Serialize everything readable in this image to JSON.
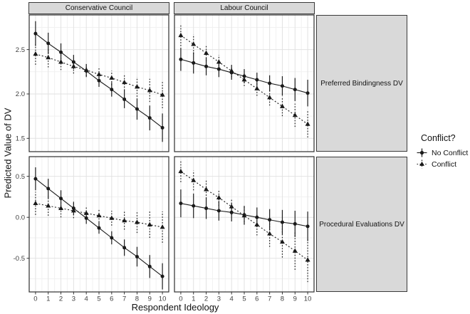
{
  "figure": {
    "col_labels": [
      "Conservative Council",
      "Labour Council"
    ],
    "row_labels": [
      "Preferred Bindingness DV",
      "Procedural Evaluations DV"
    ],
    "y_axis_title": "Predicted Value of DV",
    "x_axis_title": "Respondent Ideology",
    "legend": {
      "title": "Conflict?",
      "items": [
        {
          "label": "No Conflict",
          "marker": "circle",
          "linestyle": "solid"
        },
        {
          "label": "Conflict",
          "marker": "triangle",
          "linestyle": "dotted"
        }
      ]
    },
    "colors": {
      "data_ink": "#1a1a1a",
      "strip_fill": "#d9d9d9",
      "panel_border": "#2e2e2e",
      "grid_major": "#e2e2e2",
      "grid_minor": "#f1f1f1",
      "tick_label": "#404040"
    }
  },
  "chart_data": {
    "type": "line",
    "title": "",
    "xlabel": "Respondent Ideology",
    "ylabel": "Predicted Value of DV",
    "x": [
      0,
      1,
      2,
      3,
      4,
      5,
      6,
      7,
      8,
      9,
      10
    ],
    "xticks": [
      0,
      1,
      2,
      3,
      4,
      5,
      6,
      7,
      8,
      9,
      10
    ],
    "xlim": [
      -0.5,
      10.5
    ],
    "grid": true,
    "legend_position": "right",
    "facet_cols": [
      "Conservative Council",
      "Labour Council"
    ],
    "facet_rows": [
      "Preferred Bindingness DV",
      "Procedural Evaluations DV"
    ],
    "facets": [
      {
        "col": "Conservative Council",
        "row": "Preferred Bindingness DV",
        "ylim": [
          1.35,
          2.89
        ],
        "yticks": [
          1.5,
          2.0,
          2.5
        ],
        "series": [
          {
            "name": "No Conflict",
            "marker": "circle",
            "linestyle": "solid",
            "values": [
              2.68,
              2.57,
              2.47,
              2.36,
              2.26,
              2.15,
              2.05,
              1.94,
              1.83,
              1.73,
              1.62
            ],
            "ci_lo": [
              2.54,
              2.45,
              2.37,
              2.28,
              2.19,
              2.08,
              1.97,
              1.84,
              1.71,
              1.59,
              1.46
            ],
            "ci_hi": [
              2.82,
              2.69,
              2.57,
              2.44,
              2.33,
              2.22,
              2.13,
              2.04,
              1.95,
              1.87,
              1.78
            ]
          },
          {
            "name": "Conflict",
            "marker": "triangle",
            "linestyle": "dotted",
            "values": [
              2.45,
              2.41,
              2.36,
              2.31,
              2.27,
              2.22,
              2.18,
              2.13,
              2.08,
              2.04,
              1.99
            ],
            "ci_lo": [
              2.33,
              2.3,
              2.27,
              2.23,
              2.2,
              2.15,
              2.1,
              2.04,
              1.97,
              1.91,
              1.84
            ],
            "ci_hi": [
              2.57,
              2.52,
              2.45,
              2.39,
              2.34,
              2.29,
              2.26,
              2.22,
              2.19,
              2.17,
              2.14
            ]
          }
        ]
      },
      {
        "col": "Labour Council",
        "row": "Preferred Bindingness DV",
        "ylim": [
          1.35,
          2.89
        ],
        "yticks": [
          1.5,
          2.0,
          2.5
        ],
        "series": [
          {
            "name": "No Conflict",
            "marker": "circle",
            "linestyle": "solid",
            "values": [
              2.39,
              2.35,
              2.31,
              2.28,
              2.24,
              2.2,
              2.16,
              2.12,
              2.09,
              2.05,
              2.01
            ],
            "ci_lo": [
              2.26,
              2.23,
              2.21,
              2.19,
              2.16,
              2.12,
              2.08,
              2.03,
              1.98,
              1.92,
              1.86
            ],
            "ci_hi": [
              2.52,
              2.47,
              2.41,
              2.37,
              2.32,
              2.28,
              2.24,
              2.21,
              2.2,
              2.18,
              2.16
            ]
          },
          {
            "name": "Conflict",
            "marker": "triangle",
            "linestyle": "dotted",
            "values": [
              2.66,
              2.56,
              2.46,
              2.36,
              2.26,
              2.16,
              2.06,
              1.96,
              1.86,
              1.76,
              1.66
            ],
            "ci_lo": [
              2.54,
              2.45,
              2.37,
              2.28,
              2.19,
              2.09,
              1.98,
              1.87,
              1.75,
              1.63,
              1.51
            ],
            "ci_hi": [
              2.78,
              2.67,
              2.55,
              2.44,
              2.33,
              2.23,
              2.14,
              2.05,
              1.97,
              1.89,
              1.81
            ]
          }
        ]
      },
      {
        "col": "Conservative Council",
        "row": "Procedural Evaluations DV",
        "ylim": [
          -0.91,
          0.74
        ],
        "yticks": [
          -0.5,
          0.0,
          0.5
        ],
        "series": [
          {
            "name": "No Conflict",
            "marker": "circle",
            "linestyle": "solid",
            "values": [
              0.47,
              0.35,
              0.23,
              0.11,
              -0.01,
              -0.13,
              -0.25,
              -0.37,
              -0.48,
              -0.6,
              -0.72
            ],
            "ci_lo": [
              0.33,
              0.23,
              0.13,
              0.03,
              -0.08,
              -0.2,
              -0.33,
              -0.47,
              -0.6,
              -0.74,
              -0.88
            ],
            "ci_hi": [
              0.61,
              0.47,
              0.33,
              0.19,
              0.06,
              -0.06,
              -0.17,
              -0.27,
              -0.36,
              -0.46,
              -0.56
            ]
          },
          {
            "name": "Conflict",
            "marker": "triangle",
            "linestyle": "dotted",
            "values": [
              0.17,
              0.14,
              0.11,
              0.08,
              0.05,
              0.02,
              -0.01,
              -0.04,
              -0.06,
              -0.09,
              -0.12
            ],
            "ci_lo": [
              0.03,
              0.02,
              0.0,
              -0.01,
              -0.03,
              -0.06,
              -0.1,
              -0.15,
              -0.19,
              -0.25,
              -0.31
            ],
            "ci_hi": [
              0.31,
              0.26,
              0.22,
              0.17,
              0.13,
              0.1,
              0.08,
              0.07,
              0.07,
              0.07,
              0.07
            ]
          }
        ]
      },
      {
        "col": "Labour Council",
        "row": "Procedural Evaluations DV",
        "ylim": [
          -0.91,
          0.74
        ],
        "yticks": [
          -0.5,
          0.0,
          0.5
        ],
        "series": [
          {
            "name": "No Conflict",
            "marker": "circle",
            "linestyle": "solid",
            "values": [
              0.17,
              0.14,
              0.11,
              0.08,
              0.06,
              0.03,
              0.0,
              -0.03,
              -0.06,
              -0.08,
              -0.11
            ],
            "ci_lo": [
              0.0,
              -0.01,
              -0.02,
              -0.04,
              -0.05,
              -0.08,
              -0.12,
              -0.16,
              -0.21,
              -0.24,
              -0.29
            ],
            "ci_hi": [
              0.34,
              0.29,
              0.24,
              0.2,
              0.17,
              0.14,
              0.12,
              0.1,
              0.09,
              0.08,
              0.07
            ]
          },
          {
            "name": "Conflict",
            "marker": "triangle",
            "linestyle": "dotted",
            "values": [
              0.56,
              0.45,
              0.34,
              0.24,
              0.13,
              0.02,
              -0.09,
              -0.2,
              -0.3,
              -0.41,
              -0.52
            ],
            "ci_lo": [
              0.43,
              0.33,
              0.23,
              0.14,
              0.03,
              -0.09,
              -0.22,
              -0.36,
              -0.49,
              -0.64,
              -0.79
            ],
            "ci_hi": [
              0.69,
              0.57,
              0.45,
              0.34,
              0.23,
              0.13,
              0.04,
              -0.04,
              -0.11,
              -0.18,
              -0.25
            ]
          }
        ]
      }
    ]
  }
}
